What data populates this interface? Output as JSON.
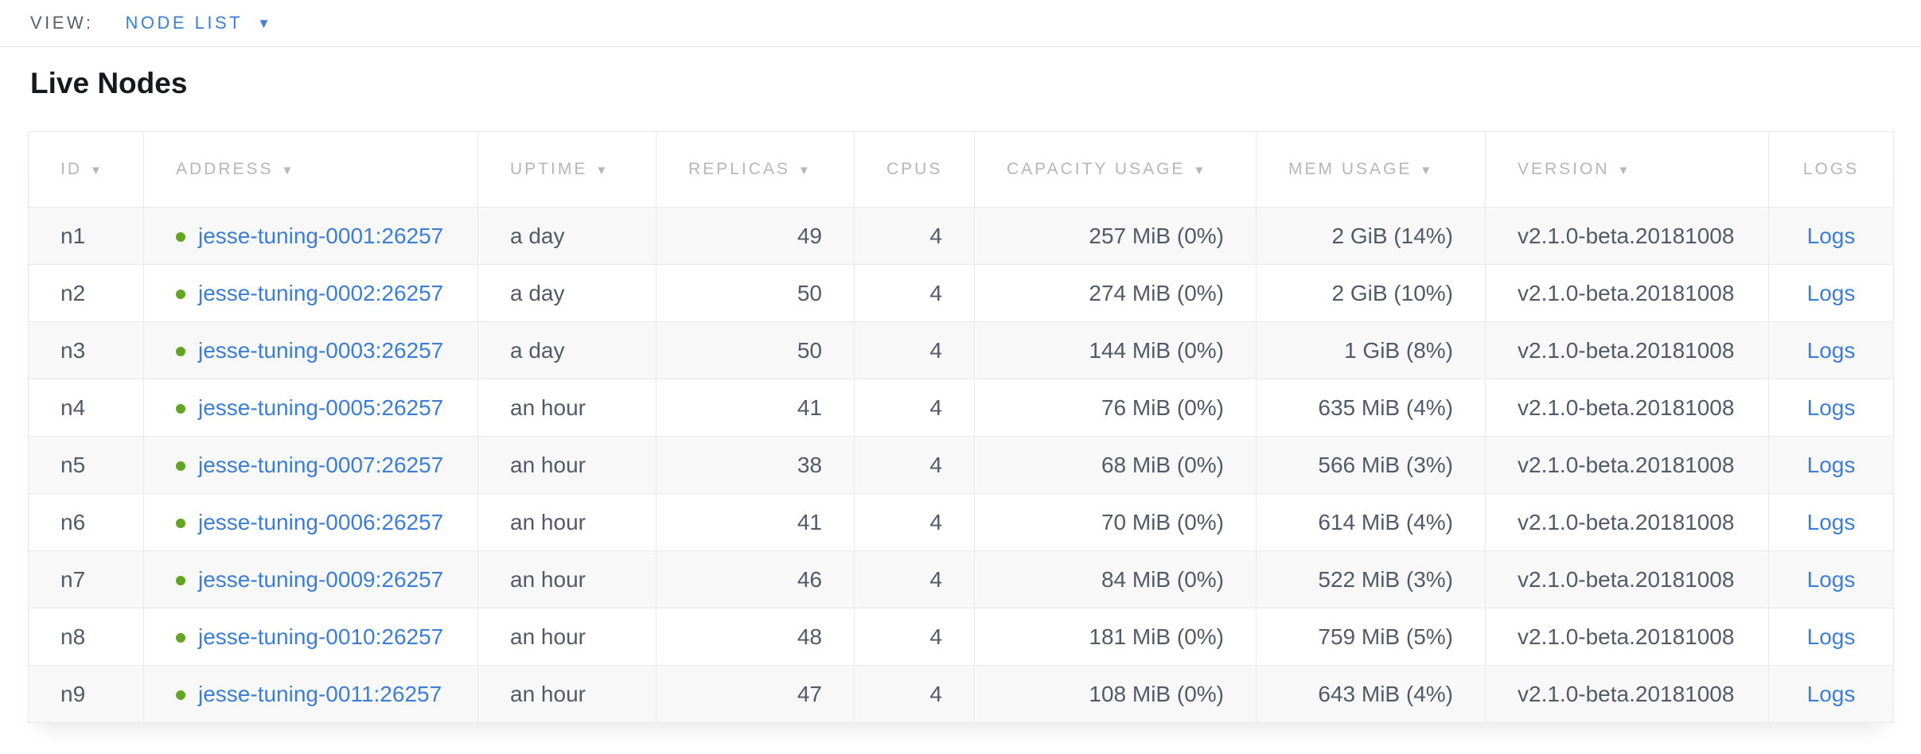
{
  "view_bar": {
    "label": "VIEW:",
    "selected_view": "NODE LIST"
  },
  "page": {
    "title": "Live Nodes"
  },
  "icons": {
    "dropdown_caret": "▼",
    "sort_arrow": "▼",
    "status_dot": "circle"
  },
  "colors": {
    "link_blue": "#3b7dd8",
    "status_green": "#62a521",
    "header_gray": "#b4b6ba",
    "body_text": "#525a69",
    "row_stripe": "#f8f8f8",
    "border": "#e9e9e9"
  },
  "table": {
    "columns": [
      {
        "key": "id",
        "label": "ID",
        "sortable": true
      },
      {
        "key": "address",
        "label": "ADDRESS",
        "sortable": true
      },
      {
        "key": "uptime",
        "label": "UPTIME",
        "sortable": true
      },
      {
        "key": "replicas",
        "label": "REPLICAS",
        "sortable": true
      },
      {
        "key": "cpus",
        "label": "CPUS",
        "sortable": false
      },
      {
        "key": "capacity",
        "label": "CAPACITY USAGE",
        "sortable": true
      },
      {
        "key": "mem",
        "label": "MEM USAGE",
        "sortable": true
      },
      {
        "key": "version",
        "label": "VERSION",
        "sortable": true
      },
      {
        "key": "logs",
        "label": "LOGS",
        "sortable": false
      }
    ],
    "rows": [
      {
        "id": "n1",
        "address": "jesse-tuning-0001:26257",
        "uptime": "a day",
        "replicas": "49",
        "cpus": "4",
        "capacity": "257 MiB (0%)",
        "mem": "2 GiB (14%)",
        "version": "v2.1.0-beta.20181008",
        "logs": "Logs"
      },
      {
        "id": "n2",
        "address": "jesse-tuning-0002:26257",
        "uptime": "a day",
        "replicas": "50",
        "cpus": "4",
        "capacity": "274 MiB (0%)",
        "mem": "2 GiB (10%)",
        "version": "v2.1.0-beta.20181008",
        "logs": "Logs"
      },
      {
        "id": "n3",
        "address": "jesse-tuning-0003:26257",
        "uptime": "a day",
        "replicas": "50",
        "cpus": "4",
        "capacity": "144 MiB (0%)",
        "mem": "1 GiB (8%)",
        "version": "v2.1.0-beta.20181008",
        "logs": "Logs"
      },
      {
        "id": "n4",
        "address": "jesse-tuning-0005:26257",
        "uptime": "an hour",
        "replicas": "41",
        "cpus": "4",
        "capacity": "76 MiB (0%)",
        "mem": "635 MiB (4%)",
        "version": "v2.1.0-beta.20181008",
        "logs": "Logs"
      },
      {
        "id": "n5",
        "address": "jesse-tuning-0007:26257",
        "uptime": "an hour",
        "replicas": "38",
        "cpus": "4",
        "capacity": "68 MiB (0%)",
        "mem": "566 MiB (3%)",
        "version": "v2.1.0-beta.20181008",
        "logs": "Logs"
      },
      {
        "id": "n6",
        "address": "jesse-tuning-0006:26257",
        "uptime": "an hour",
        "replicas": "41",
        "cpus": "4",
        "capacity": "70 MiB (0%)",
        "mem": "614 MiB (4%)",
        "version": "v2.1.0-beta.20181008",
        "logs": "Logs"
      },
      {
        "id": "n7",
        "address": "jesse-tuning-0009:26257",
        "uptime": "an hour",
        "replicas": "46",
        "cpus": "4",
        "capacity": "84 MiB (0%)",
        "mem": "522 MiB (3%)",
        "version": "v2.1.0-beta.20181008",
        "logs": "Logs"
      },
      {
        "id": "n8",
        "address": "jesse-tuning-0010:26257",
        "uptime": "an hour",
        "replicas": "48",
        "cpus": "4",
        "capacity": "181 MiB (0%)",
        "mem": "759 MiB (5%)",
        "version": "v2.1.0-beta.20181008",
        "logs": "Logs"
      },
      {
        "id": "n9",
        "address": "jesse-tuning-0011:26257",
        "uptime": "an hour",
        "replicas": "47",
        "cpus": "4",
        "capacity": "108 MiB (0%)",
        "mem": "643 MiB (4%)",
        "version": "v2.1.0-beta.20181008",
        "logs": "Logs"
      }
    ]
  }
}
